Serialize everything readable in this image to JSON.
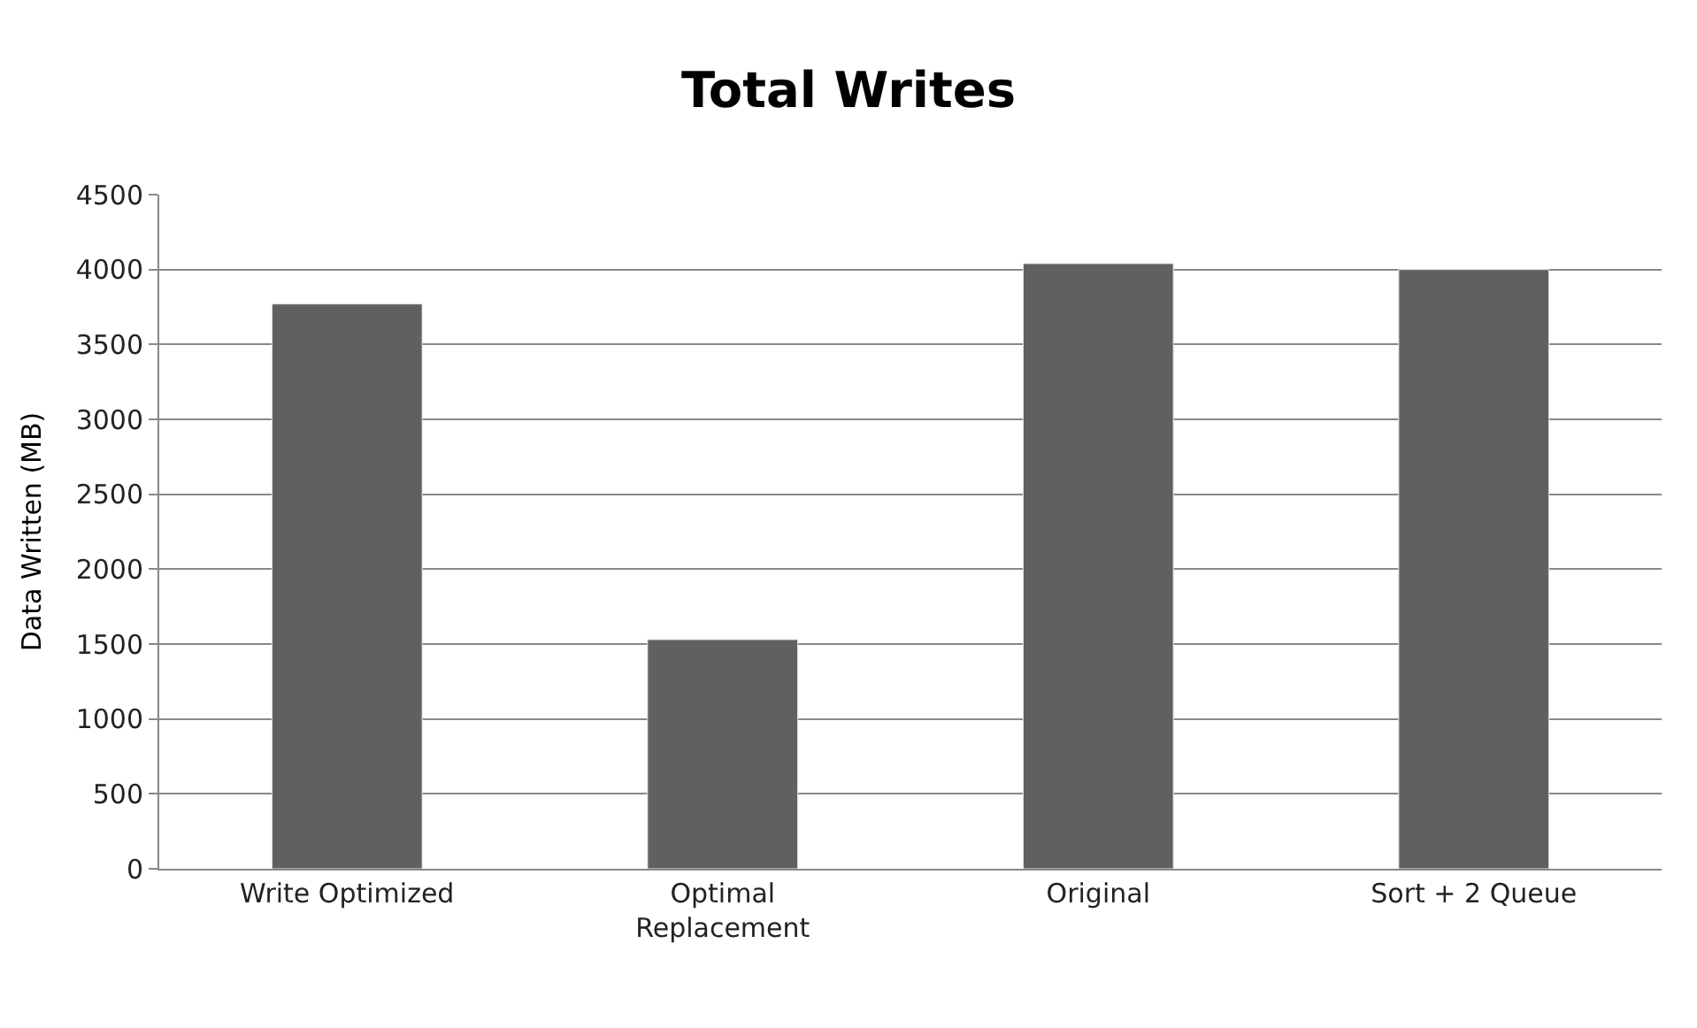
{
  "chart_data": {
    "type": "bar",
    "title": "Total Writes",
    "ylabel": "Data Written (MB)",
    "categories": [
      "Write Optimized",
      "Optimal Replacement",
      "Original",
      "Sort + 2 Queue"
    ],
    "values": [
      3770,
      1530,
      4040,
      4000
    ],
    "color": "#606060",
    "ylim": [
      0,
      4500
    ],
    "yticks": [
      0,
      500,
      1000,
      1500,
      2000,
      2500,
      3000,
      3500,
      4000,
      4500
    ],
    "grid": "y",
    "legend": false
  }
}
